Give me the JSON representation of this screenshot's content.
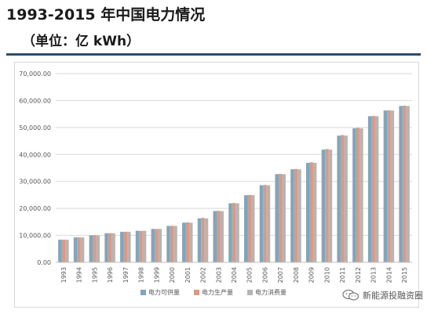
{
  "header": {
    "title": "1993-2015 年中国电力情况",
    "subtitle": "（单位：亿 kWh）"
  },
  "watermark": {
    "text": "新能源投融资圈",
    "icon": "wechat-icon"
  },
  "colors": {
    "supply": "#7fa6bd",
    "production": "#d89a86",
    "consumption": "#b5b5b5",
    "grid": "#d9d9d9",
    "axis_text": "#595959",
    "rule": "#2b4d6b"
  },
  "chart_data": {
    "type": "bar",
    "categories": [
      "1993",
      "1994",
      "1995",
      "1996",
      "1997",
      "1998",
      "1999",
      "2000",
      "2001",
      "2002",
      "2003",
      "2004",
      "2005",
      "2006",
      "2007",
      "2008",
      "2009",
      "2010",
      "2011",
      "2012",
      "2013",
      "2014",
      "2015"
    ],
    "series": [
      {
        "name": "电力可供量",
        "color": "#7fa6bd",
        "values": [
          8400,
          9250,
          10020,
          10800,
          11300,
          11700,
          12400,
          13500,
          14700,
          16300,
          19000,
          21900,
          24900,
          28600,
          32700,
          34500,
          36900,
          41800,
          47000,
          49700,
          54200,
          56300,
          58000
        ]
      },
      {
        "name": "电力生产量",
        "color": "#d89a86",
        "values": [
          8400,
          9250,
          10080,
          10790,
          11350,
          11650,
          12370,
          13550,
          14800,
          16500,
          19100,
          22000,
          25000,
          28700,
          32800,
          34600,
          37100,
          42000,
          47200,
          49900,
          54300,
          56400,
          58100
        ]
      },
      {
        "name": "电力消费量",
        "color": "#b5b5b5",
        "values": [
          8400,
          9250,
          10020,
          10800,
          11300,
          11700,
          12400,
          13500,
          14700,
          16300,
          19000,
          21900,
          24900,
          28600,
          32700,
          34500,
          36900,
          41800,
          47000,
          49700,
          54200,
          56300,
          58000
        ]
      }
    ],
    "yticks": [
      "0.00",
      "10,000.00",
      "20,000.00",
      "30,000.00",
      "40,000.00",
      "50,000.00",
      "60,000.00",
      "70,000.00"
    ],
    "ylim": [
      0,
      70000
    ],
    "grid": true,
    "legend_position": "bottom"
  }
}
